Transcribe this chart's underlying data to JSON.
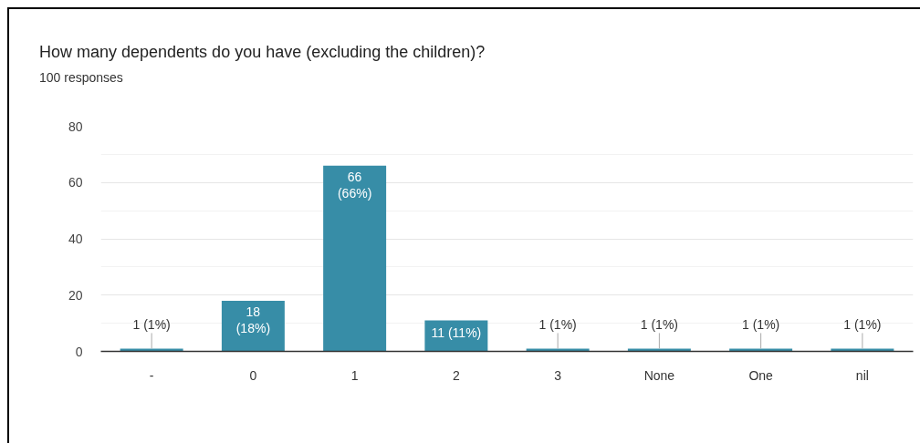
{
  "chart_data": {
    "type": "bar",
    "title": "How many dependents do you have (excluding the children)?",
    "subtitle": "100 responses",
    "categories": [
      "-",
      "0",
      "1",
      "2",
      "3",
      "None",
      "One",
      "nil"
    ],
    "values": [
      1,
      18,
      66,
      11,
      1,
      1,
      1,
      1
    ],
    "color": "#378da7",
    "value_labels": [
      "1 (1%)",
      "18 (18%)",
      "66 (66%)",
      "11 (11%)",
      "1 (1%)",
      "1 (1%)",
      "1 (1%)",
      "1 (1%)"
    ],
    "ylim": [
      0,
      80
    ],
    "yticks": [
      0,
      {
        "value": 10,
        "label": null
      },
      20,
      {
        "value": 30,
        "label": null
      },
      40,
      {
        "value": 50,
        "label": null
      },
      60,
      {
        "value": 70,
        "label": null
      },
      80
    ],
    "grid": "y"
  }
}
